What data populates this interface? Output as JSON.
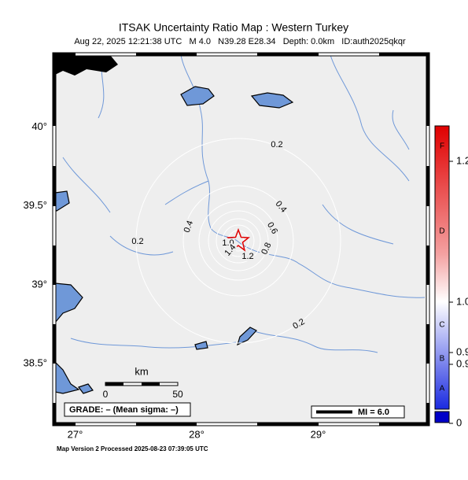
{
  "header": {
    "title": "ITSAK Uncertainty Ratio Map : Western Turkey",
    "subtitle": "Aug 22, 2025 12:21:38 UTC   M 4.0   N39.28 E28.34   Depth: 0.0km   ID:auth2025qkqr"
  },
  "map": {
    "lat_ticks": [
      {
        "value": 40,
        "label": "40°"
      },
      {
        "value": 39.5,
        "label": "39.5°"
      },
      {
        "value": 39,
        "label": "39°"
      },
      {
        "value": 38.5,
        "label": "38.5°"
      }
    ],
    "lon_ticks": [
      {
        "value": 27,
        "label": "27°"
      },
      {
        "value": 28,
        "label": "28°"
      },
      {
        "value": 29,
        "label": "29°"
      }
    ],
    "contour_labels": [
      "0.2",
      "0.2",
      "0.2",
      "0.4",
      "0.4",
      "0.6",
      "0.8",
      "1.0",
      "1.2",
      "1.4"
    ],
    "scale_bar": {
      "unit": "km",
      "start": "0",
      "end": "50"
    },
    "grade": "GRADE: – (Mean sigma: –)",
    "mi_legend": "MI = 6.0"
  },
  "colorbar": {
    "letters": [
      "F",
      "D",
      "C",
      "B",
      "A"
    ],
    "labels": [
      "1.2",
      "1.0",
      "0.9",
      "0.9",
      "0"
    ]
  },
  "footer": "Map Version 2 Processed 2025-08-23 07:39:05 UTC"
}
